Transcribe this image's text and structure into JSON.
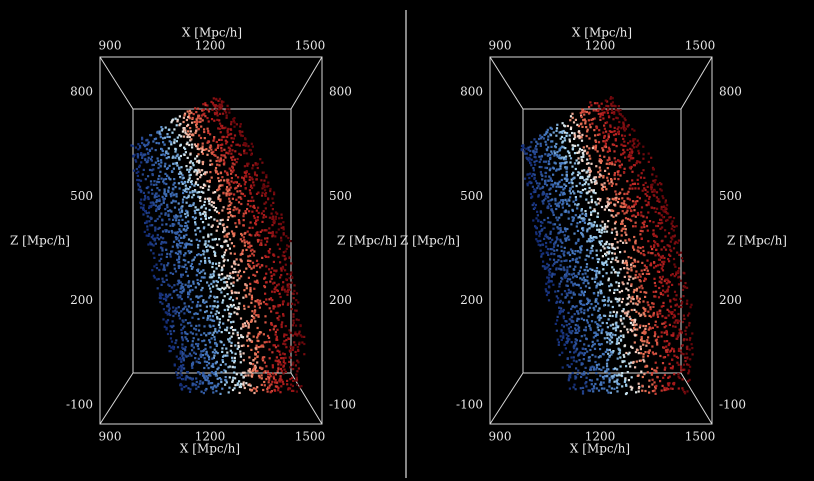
{
  "panels": [
    {
      "x_label_top": "X [Mpc/h]",
      "x_label_bottom": "X [Mpc/h]",
      "z_label_left": "Z [Mpc/h]",
      "z_label_right": "Z [Mpc/h]",
      "x_ticks_top": [
        900,
        1200,
        1500
      ],
      "x_ticks_bottom": [
        900,
        1200,
        1500
      ],
      "z_ticks_left": [
        800,
        500,
        200,
        -100
      ],
      "z_ticks_right": [
        800,
        500,
        200,
        -100
      ]
    },
    {
      "x_label_top": "X [Mpc/h]",
      "x_label_bottom": "X [Mpc/h]",
      "z_label_left": "Z [Mpc/h]",
      "z_label_right": "Z [Mpc/h]",
      "x_ticks_top": [
        900,
        1200,
        1500
      ],
      "x_ticks_bottom": [
        900,
        1200,
        1500
      ],
      "z_ticks_left": [
        800,
        500,
        200,
        -100
      ],
      "z_ticks_right": [
        800,
        500,
        200,
        -100
      ]
    }
  ]
}
